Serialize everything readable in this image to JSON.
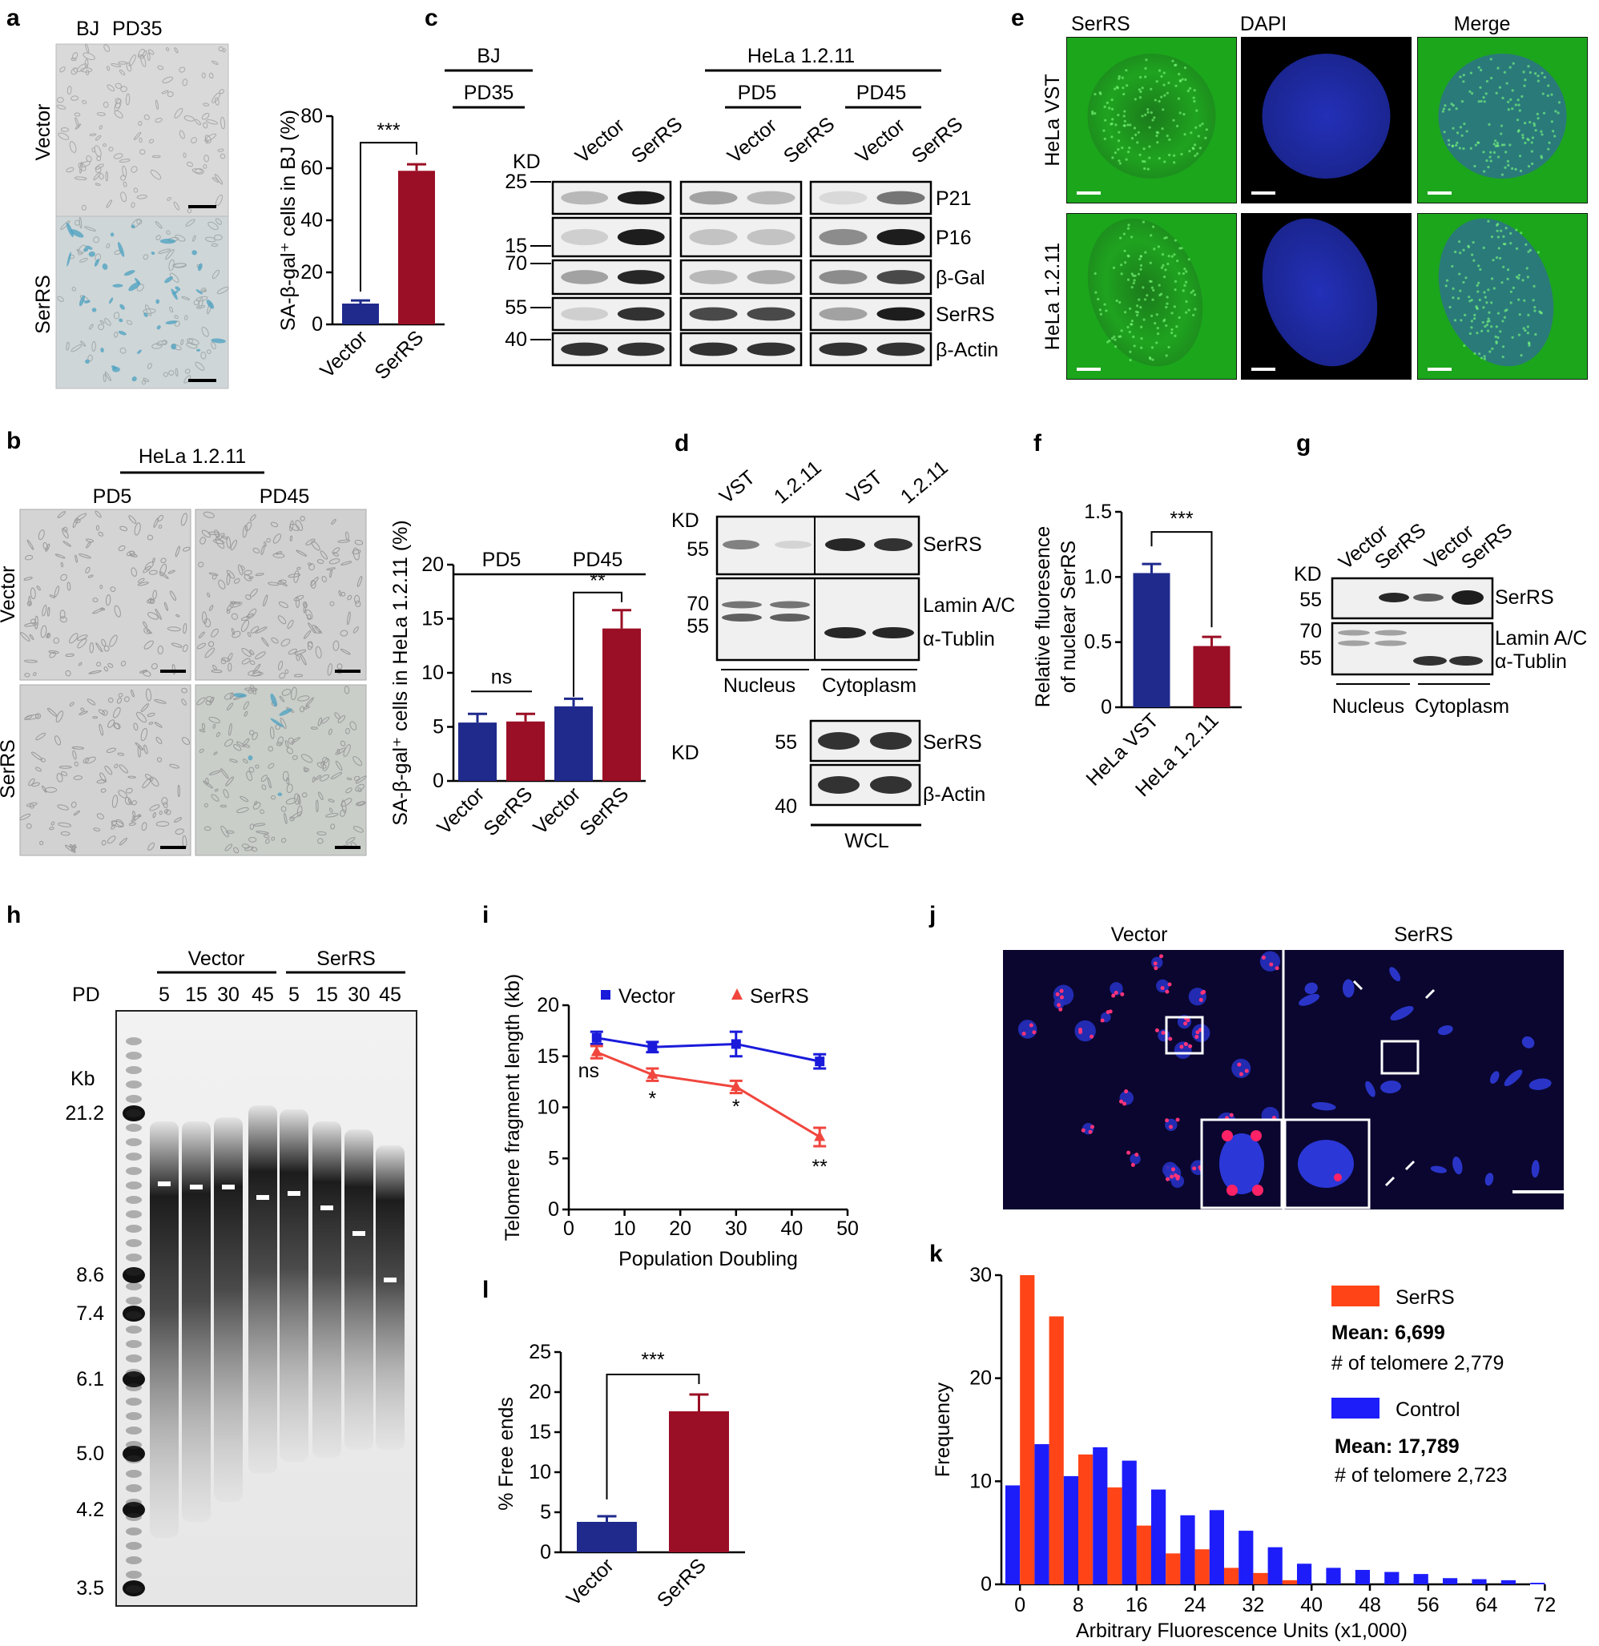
{
  "panels": {
    "a": {
      "label": "a",
      "header": [
        "BJ",
        "PD35"
      ],
      "rows": [
        "Vector",
        "SerRS"
      ],
      "chart": {
        "type": "bar",
        "ylabel": "SA-β-gal⁺ cells in BJ (%)",
        "categories": [
          "Vector",
          "SerRS"
        ],
        "values": [
          8,
          59
        ],
        "errors": [
          1.2,
          2.5
        ],
        "colors": [
          "#1f2a8c",
          "#9a0f25"
        ],
        "ylim": [
          0,
          80
        ],
        "yticks": [
          "0",
          "20",
          "40",
          "60",
          "80"
        ],
        "sig": "***"
      }
    },
    "b": {
      "label": "b",
      "group": "HeLa 1.2.11",
      "cols": [
        "PD5",
        "PD45"
      ],
      "rows": [
        "Vector",
        "SerRS"
      ],
      "chart": {
        "type": "bar",
        "ylabel": "SA-β-gal⁺ cells in HeLa 1.2.11 (%)",
        "categories": [
          "Vector",
          "SerRS",
          "Vector",
          "SerRS"
        ],
        "groups": [
          "PD5",
          "PD45"
        ],
        "values": [
          5.4,
          5.5,
          6.9,
          14.1
        ],
        "errors": [
          0.8,
          0.7,
          0.7,
          1.7
        ],
        "colors": [
          "#1f2a8c",
          "#9a0f25",
          "#1f2a8c",
          "#9a0f25"
        ],
        "ylim": [
          0,
          20
        ],
        "yticks": [
          "0",
          "5",
          "10",
          "15",
          "20"
        ],
        "sig": [
          "ns",
          "**"
        ]
      }
    },
    "c": {
      "label": "c",
      "groups": [
        "BJ",
        "HeLa 1.2.11"
      ],
      "subgroups": [
        "PD35",
        "PD5",
        "PD45"
      ],
      "lanes": [
        "Vector",
        "SerRS",
        "Vector",
        "SerRS",
        "Vector",
        "SerRS"
      ],
      "kd_title": "KD",
      "kd": [
        "25",
        "15",
        "70",
        "55",
        "40"
      ],
      "proteins": [
        "P21",
        "P16",
        "β-Gal",
        "SerRS",
        "β-Actin"
      ]
    },
    "d": {
      "label": "d",
      "lanes": [
        "VST",
        "1.2.11",
        "VST",
        "1.2.11"
      ],
      "kd_title": "KD",
      "kd_top": [
        "55",
        "70",
        "55"
      ],
      "proteins_top": [
        "SerRS",
        "Lamin A/C",
        "α-Tublin"
      ],
      "fractions": [
        "Nucleus",
        "Cytoplasm"
      ],
      "kd_bottom": [
        "55",
        "40"
      ],
      "proteins_bottom": [
        "SerRS",
        "β-Actin"
      ],
      "wcl": "WCL"
    },
    "e": {
      "label": "e",
      "cols": [
        "SerRS",
        "DAPI",
        "Merge"
      ],
      "rows": [
        "HeLa VST",
        "HeLa 1.2.11"
      ]
    },
    "f": {
      "label": "f",
      "chart": {
        "type": "bar",
        "ylabel": [
          "Relative fluoresence",
          "of nuclear SerRS"
        ],
        "categories": [
          "HeLa VST",
          "HeLa 1.2.11"
        ],
        "values": [
          1.03,
          0.47
        ],
        "errors": [
          0.07,
          0.07
        ],
        "colors": [
          "#1f2a8c",
          "#9a0f25"
        ],
        "ylim": [
          0,
          1.5
        ],
        "yticks": [
          "0",
          "0.5",
          "1.0",
          "1.5"
        ],
        "sig": "***"
      }
    },
    "g": {
      "label": "g",
      "lanes": [
        "Vector",
        "SerRS",
        "Vector",
        "SerRS"
      ],
      "kd_title": "KD",
      "kd": [
        "55",
        "70",
        "55"
      ],
      "proteins": [
        "SerRS",
        "Lamin A/C",
        "α-Tublin"
      ],
      "fractions": [
        "Nucleus",
        "Cytoplasm"
      ]
    },
    "h": {
      "label": "h",
      "groups": [
        "Vector",
        "SerRS"
      ],
      "pd_title": "PD",
      "pds": [
        "5",
        "15",
        "30",
        "45",
        "5",
        "15",
        "30",
        "45"
      ],
      "kb_title": "Kb",
      "markers": [
        "21.2",
        "8.6",
        "7.4",
        "6.1",
        "5.0",
        "4.2",
        "3.5"
      ]
    },
    "i": {
      "label": "i",
      "chart": {
        "type": "line",
        "xlabel": "Population Doubling",
        "ylabel": "Telomere fragment length (kb)",
        "x": [
          5,
          15,
          30,
          45
        ],
        "series": [
          {
            "name": "Vector",
            "values": [
              16.8,
              15.9,
              16.2,
              14.5
            ],
            "errors": [
              0.6,
              0.5,
              1.2,
              0.7
            ],
            "color": "#1a1adb"
          },
          {
            "name": "SerRS",
            "values": [
              15.4,
              13.2,
              12.0,
              7.1
            ],
            "errors": [
              0.6,
              0.6,
              0.6,
              0.9
            ],
            "color": "#f0463e"
          }
        ],
        "xlim": [
          0,
          50
        ],
        "ylim": [
          0,
          20
        ],
        "xticks": [
          "0",
          "10",
          "20",
          "30",
          "40",
          "50"
        ],
        "yticks": [
          "0",
          "5",
          "10",
          "15",
          "20"
        ],
        "sig": [
          "ns",
          "*",
          "*",
          "**"
        ]
      }
    },
    "j": {
      "label": "j",
      "cols": [
        "Vector",
        "SerRS"
      ]
    },
    "k": {
      "label": "k",
      "chart": {
        "type": "bar",
        "xlabel": "Arbitrary Fluorescence Units (x1,000)",
        "ylabel": "Frequency",
        "bins": [
          0,
          4,
          8,
          12,
          16,
          20,
          24,
          28,
          32,
          36,
          40,
          44,
          48,
          52,
          56,
          60,
          64,
          68,
          72
        ],
        "series": [
          {
            "name": "SerRS",
            "color": "#ff4517",
            "values": [
              30,
              26,
              12.6,
              9.4,
              5.7,
              3.0,
              3.4,
              1.6,
              1.1,
              0.4,
              0,
              0,
              0,
              0,
              0,
              0,
              0,
              0,
              0
            ]
          },
          {
            "name": "Control",
            "color": "#1d1dfa",
            "values": [
              9.6,
              13.6,
              10.5,
              13.3,
              12.0,
              9.2,
              6.7,
              7.2,
              5.2,
              3.6,
              2.0,
              1.6,
              1.4,
              1.2,
              1.0,
              0.6,
              0.5,
              0.4,
              0.15
            ]
          }
        ],
        "ylim": [
          0,
          30
        ],
        "xticks": [
          "0",
          "8",
          "16",
          "24",
          "32",
          "40",
          "48",
          "56",
          "64",
          "72"
        ],
        "yticks": [
          "0",
          "10",
          "20",
          "30"
        ],
        "legend": [
          {
            "name": "SerRS",
            "mean": "Mean: 6,699",
            "count": "# of telomere 2,779"
          },
          {
            "name": "Control",
            "mean": "Mean: 17,789",
            "count": "# of telomere 2,723"
          }
        ]
      }
    },
    "l": {
      "label": "l",
      "chart": {
        "type": "bar",
        "ylabel": "% Free ends",
        "categories": [
          "Vector",
          "SerRS"
        ],
        "values": [
          3.8,
          17.6
        ],
        "errors": [
          0.7,
          2.1
        ],
        "colors": [
          "#1f2a8c",
          "#9a0f25"
        ],
        "ylim": [
          0,
          25
        ],
        "yticks": [
          "0",
          "5",
          "10",
          "15",
          "20",
          "25"
        ],
        "sig": "***"
      }
    }
  }
}
